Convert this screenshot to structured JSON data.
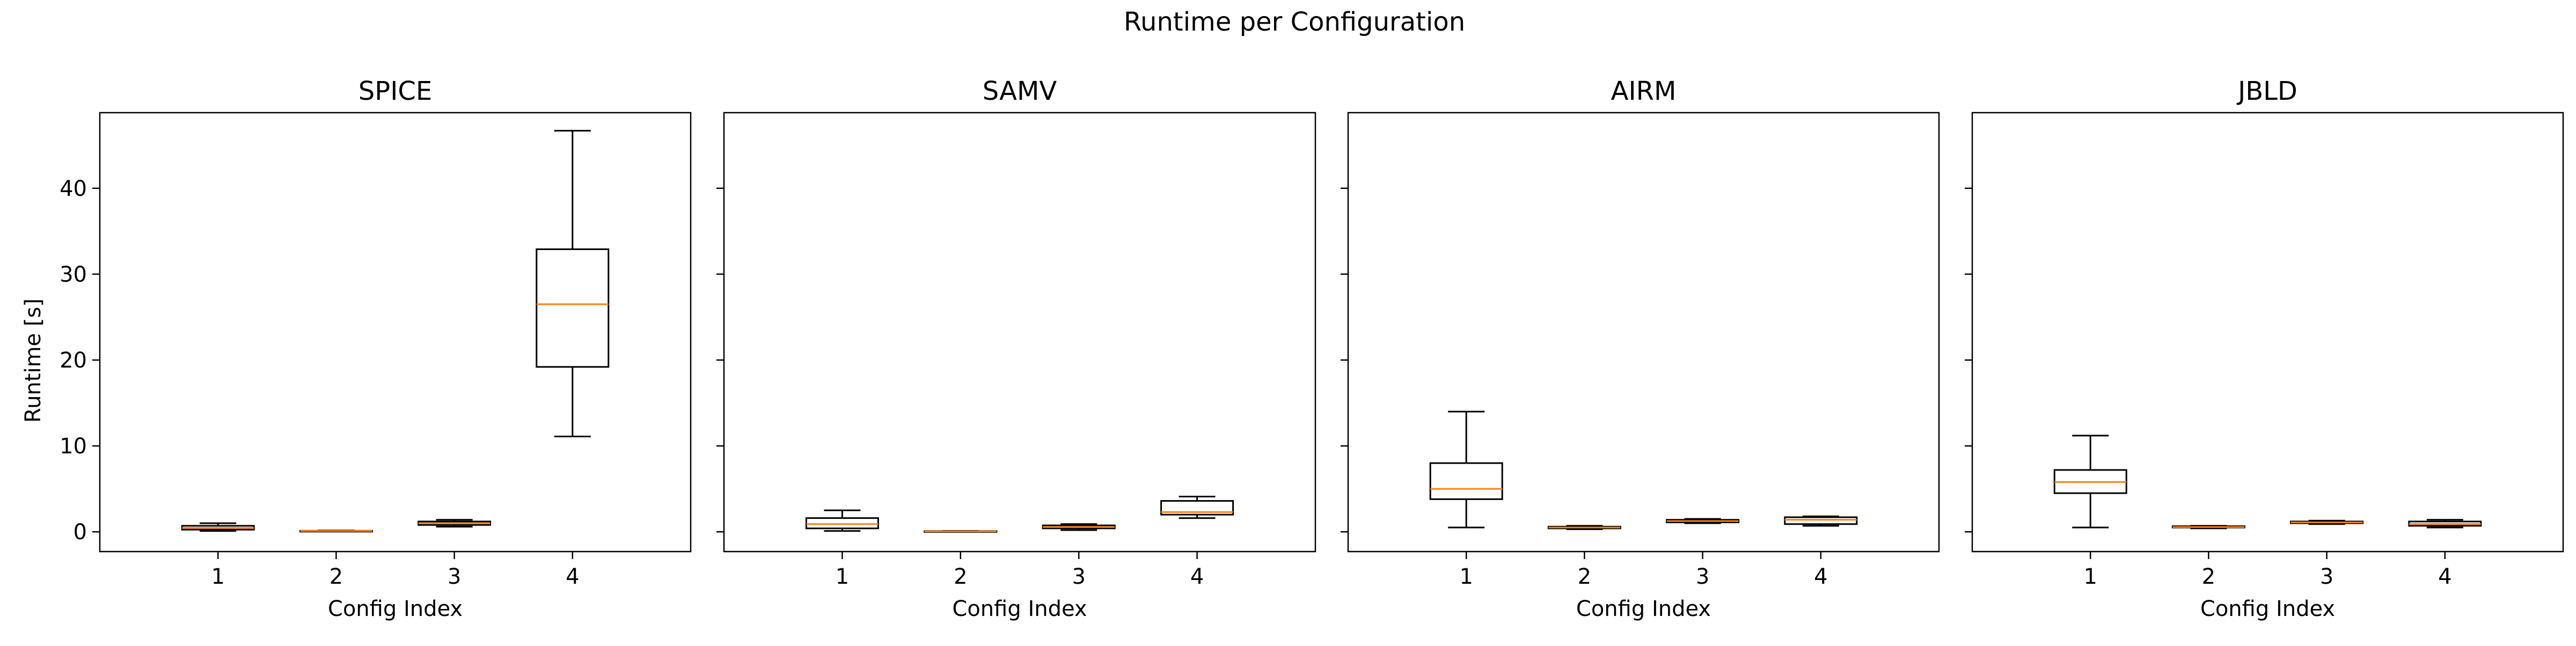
{
  "chart_data": {
    "type": "boxplot",
    "title": "Runtime per Configuration",
    "ylabel": "Runtime [s]",
    "xlabel": "Config Index",
    "categories": [
      "1",
      "2",
      "3",
      "4"
    ],
    "ylim": [
      -2.3,
      48.8
    ],
    "yticks": [
      0,
      10,
      20,
      30,
      40
    ],
    "sharey": true,
    "grid": false,
    "colors": {
      "box": "#000000",
      "median": "#ff7f0e"
    },
    "panels": [
      {
        "title": "SPICE",
        "boxes": [
          {
            "whislo": 0.1,
            "q1": 0.25,
            "med": 0.45,
            "q3": 0.7,
            "whishi": 1.0
          },
          {
            "whislo": 0.05,
            "q1": 0.08,
            "med": 0.1,
            "q3": 0.12,
            "whishi": 0.15
          },
          {
            "whislo": 0.6,
            "q1": 0.8,
            "med": 1.0,
            "q3": 1.2,
            "whishi": 1.4
          },
          {
            "whislo": 11.1,
            "q1": 19.2,
            "med": 26.5,
            "q3": 32.9,
            "whishi": 46.7
          }
        ]
      },
      {
        "title": "SAMV",
        "boxes": [
          {
            "whislo": 0.1,
            "q1": 0.4,
            "med": 0.9,
            "q3": 1.6,
            "whishi": 2.5
          },
          {
            "whislo": 0.0,
            "q1": 0.02,
            "med": 0.05,
            "q3": 0.08,
            "whishi": 0.1
          },
          {
            "whislo": 0.2,
            "q1": 0.4,
            "med": 0.55,
            "q3": 0.75,
            "whishi": 0.9
          },
          {
            "whislo": 1.6,
            "q1": 2.0,
            "med": 2.3,
            "q3": 3.6,
            "whishi": 4.1
          }
        ]
      },
      {
        "title": "AIRM",
        "boxes": [
          {
            "whislo": 0.5,
            "q1": 3.8,
            "med": 5.0,
            "q3": 8.0,
            "whishi": 14.0
          },
          {
            "whislo": 0.3,
            "q1": 0.4,
            "med": 0.5,
            "q3": 0.6,
            "whishi": 0.7
          },
          {
            "whislo": 1.0,
            "q1": 1.1,
            "med": 1.25,
            "q3": 1.4,
            "whishi": 1.5
          },
          {
            "whislo": 0.7,
            "q1": 0.9,
            "med": 1.4,
            "q3": 1.7,
            "whishi": 1.8
          }
        ]
      },
      {
        "title": "JBLD",
        "boxes": [
          {
            "whislo": 0.5,
            "q1": 4.5,
            "med": 5.8,
            "q3": 7.2,
            "whishi": 11.2
          },
          {
            "whislo": 0.4,
            "q1": 0.5,
            "med": 0.55,
            "q3": 0.65,
            "whishi": 0.7
          },
          {
            "whislo": 0.9,
            "q1": 1.0,
            "med": 1.1,
            "q3": 1.2,
            "whishi": 1.3
          },
          {
            "whislo": 0.5,
            "q1": 0.7,
            "med": 0.9,
            "q3": 1.2,
            "whishi": 1.4
          }
        ]
      }
    ]
  }
}
